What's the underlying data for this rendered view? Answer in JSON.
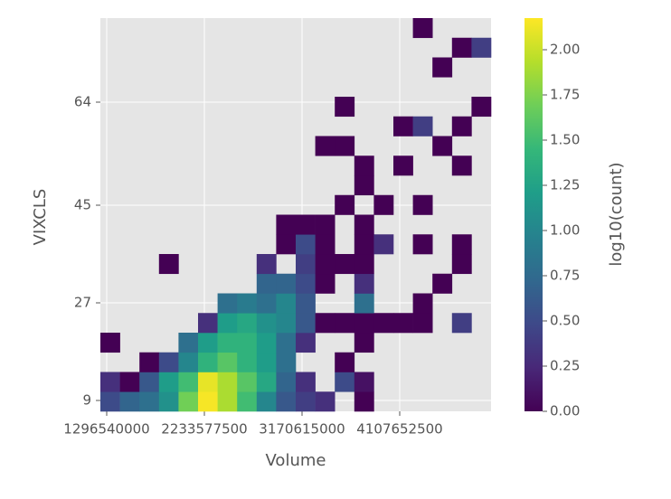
{
  "chart_data": {
    "type": "hist2d",
    "xlabel": "Volume",
    "ylabel": "VIXCLS",
    "colorbar_label": "log10(count)",
    "x_bins": [
      1235800000,
      1423207500,
      1610615000,
      1798022500,
      1985430000,
      2172837500,
      2360245000,
      2547652500,
      2735060000,
      2922467500,
      3109875000,
      3297282500,
      3484690000,
      3672097500,
      3859505000,
      4046912500,
      4234320000,
      4421727500,
      4609135000,
      4796542500,
      4983950000
    ],
    "y_bins": [
      7,
      10.625,
      14.25,
      17.875,
      21.5,
      25.125,
      28.75,
      32.375,
      36,
      39.625,
      43.25,
      46.875,
      50.5,
      54.125,
      57.75,
      61.375,
      65,
      68.625,
      72.25,
      75.875,
      79.5
    ],
    "values": [
      [
        0.5,
        0.7,
        0.8,
        1.1,
        1.7,
        2.15,
        1.9,
        1.5,
        1.0,
        0.6,
        0.4,
        0.3,
        null,
        0,
        null,
        null,
        null,
        null,
        null,
        null
      ],
      [
        0.3,
        0,
        0.6,
        1.2,
        1.5,
        2.1,
        1.9,
        1.6,
        1.3,
        0.7,
        0.3,
        null,
        0.5,
        0.1,
        null,
        null,
        null,
        null,
        null,
        null
      ],
      [
        null,
        null,
        0,
        0.5,
        1.0,
        1.4,
        1.6,
        1.4,
        1.2,
        0.8,
        null,
        null,
        0,
        null,
        null,
        null,
        null,
        null,
        null,
        null
      ],
      [
        0,
        null,
        null,
        null,
        0.8,
        1.2,
        1.4,
        1.4,
        1.2,
        0.8,
        0.3,
        null,
        null,
        0,
        null,
        null,
        null,
        null,
        null,
        null
      ],
      [
        null,
        null,
        null,
        null,
        null,
        0.3,
        1.2,
        1.3,
        1.1,
        1.0,
        0.6,
        0,
        0,
        0,
        0,
        0,
        0,
        null,
        0.4,
        null
      ],
      [
        null,
        null,
        null,
        null,
        null,
        null,
        0.8,
        0.9,
        0.8,
        1.0,
        0.6,
        null,
        null,
        0.8,
        null,
        null,
        0,
        null,
        null,
        null
      ],
      [
        null,
        null,
        null,
        null,
        null,
        null,
        null,
        null,
        0.7,
        0.7,
        0.5,
        0,
        null,
        0.3,
        null,
        null,
        null,
        0,
        null,
        null
      ],
      [
        null,
        null,
        null,
        0,
        null,
        null,
        null,
        null,
        0.3,
        null,
        0.4,
        0,
        0,
        0,
        null,
        null,
        null,
        null,
        0,
        null
      ],
      [
        null,
        null,
        null,
        null,
        null,
        null,
        null,
        null,
        null,
        0,
        0.5,
        0,
        null,
        0,
        0.3,
        null,
        0,
        null,
        0,
        null
      ],
      [
        null,
        null,
        null,
        null,
        null,
        null,
        null,
        null,
        null,
        0,
        0,
        0,
        null,
        0,
        null,
        null,
        null,
        null,
        null,
        null
      ],
      [
        null,
        null,
        null,
        null,
        null,
        null,
        null,
        null,
        null,
        null,
        null,
        null,
        0,
        null,
        0,
        null,
        0,
        null,
        null,
        null
      ],
      [
        null,
        null,
        null,
        null,
        null,
        null,
        null,
        null,
        null,
        null,
        null,
        null,
        null,
        0,
        null,
        null,
        null,
        null,
        null,
        null
      ],
      [
        null,
        null,
        null,
        null,
        null,
        null,
        null,
        null,
        null,
        null,
        null,
        null,
        null,
        0,
        null,
        0,
        null,
        null,
        0,
        null
      ],
      [
        null,
        null,
        null,
        null,
        null,
        null,
        null,
        null,
        null,
        null,
        null,
        0,
        0,
        null,
        null,
        null,
        null,
        0,
        null,
        null
      ],
      [
        null,
        null,
        null,
        null,
        null,
        null,
        null,
        null,
        null,
        null,
        null,
        null,
        null,
        null,
        null,
        0,
        0.4,
        null,
        0,
        null
      ],
      [
        null,
        null,
        null,
        null,
        null,
        null,
        null,
        null,
        null,
        null,
        null,
        null,
        0,
        null,
        null,
        null,
        null,
        null,
        null,
        0
      ],
      [
        null,
        null,
        null,
        null,
        null,
        null,
        null,
        null,
        null,
        null,
        null,
        null,
        null,
        null,
        null,
        null,
        null,
        null,
        null,
        null
      ],
      [
        null,
        null,
        null,
        null,
        null,
        null,
        null,
        null,
        null,
        null,
        null,
        null,
        null,
        null,
        null,
        null,
        null,
        0,
        null,
        null
      ],
      [
        null,
        null,
        null,
        null,
        null,
        null,
        null,
        null,
        null,
        null,
        null,
        null,
        null,
        null,
        null,
        null,
        null,
        null,
        0,
        0.4
      ],
      [
        null,
        null,
        null,
        null,
        null,
        null,
        null,
        null,
        null,
        null,
        null,
        null,
        null,
        null,
        null,
        null,
        0,
        null,
        null,
        null
      ]
    ],
    "xlim": [
      1235800000,
      4983950000
    ],
    "ylim": [
      7,
      79.5
    ],
    "xticks": [
      1296540000,
      2233577500,
      3170615000,
      4107652500
    ],
    "yticks": [
      9,
      27,
      45,
      64
    ],
    "clim": [
      0,
      2.175
    ],
    "cticks": [
      {
        "value": 0,
        "label": "0.00"
      },
      {
        "value": 0.25,
        "label": "0.25"
      },
      {
        "value": 0.5,
        "label": "0.50"
      },
      {
        "value": 0.75,
        "label": "0.75"
      },
      {
        "value": 1,
        "label": "1.00"
      },
      {
        "value": 1.25,
        "label": "1.25"
      },
      {
        "value": 1.5,
        "label": "1.50"
      },
      {
        "value": 1.75,
        "label": "1.75"
      },
      {
        "value": 2,
        "label": "2.00"
      }
    ],
    "colormap": [
      "#440154",
      "#482878",
      "#3e4989",
      "#31688e",
      "#26828e",
      "#1f9e89",
      "#35b779",
      "#6ece58",
      "#b5de2b",
      "#fde725"
    ],
    "grid": true
  }
}
